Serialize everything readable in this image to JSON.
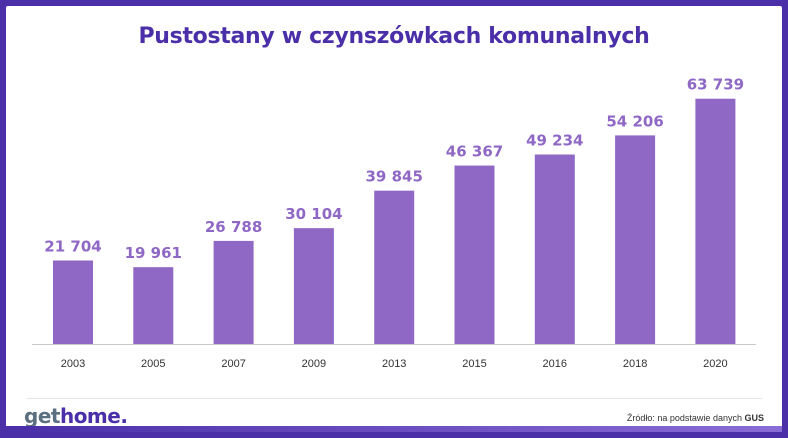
{
  "title": "Pustostany w czynszówkach komunalnych",
  "logo": {
    "part1": "get",
    "part2": "home."
  },
  "source": {
    "prefix": "Źródło: na podstawie danych",
    "name": "GUS"
  },
  "chart_data": {
    "type": "bar",
    "title": "Pustostany w czynszówkach komunalnych",
    "categories": [
      "2003",
      "2005",
      "2007",
      "2009",
      "2013",
      "2015",
      "2016",
      "2018",
      "2020"
    ],
    "values": [
      21704,
      19961,
      26788,
      30104,
      39845,
      46367,
      49234,
      54206,
      63739
    ],
    "value_labels": [
      "21 704",
      "19 961",
      "26 788",
      "30 104",
      "39 845",
      "46 367",
      "49 234",
      "54 206",
      "63 739"
    ],
    "ylim": [
      0,
      66000
    ],
    "grid": false,
    "legend": "none",
    "bar_color": "#8f68c6"
  }
}
